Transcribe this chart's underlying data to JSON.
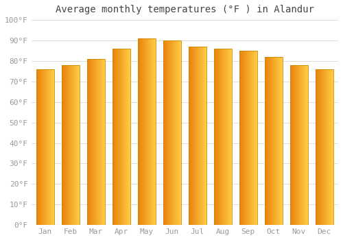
{
  "title": "Average monthly temperatures (°F ) in Alandur",
  "months": [
    "Jan",
    "Feb",
    "Mar",
    "Apr",
    "May",
    "Jun",
    "Jul",
    "Aug",
    "Sep",
    "Oct",
    "Nov",
    "Dec"
  ],
  "values": [
    76,
    78,
    81,
    86,
    91,
    90,
    87,
    86,
    85,
    82,
    78,
    76
  ],
  "bar_color_left": "#E8820A",
  "bar_color_right": "#FFCC44",
  "background_color": "#ffffff",
  "ylim": [
    0,
    100
  ],
  "yticks": [
    0,
    10,
    20,
    30,
    40,
    50,
    60,
    70,
    80,
    90,
    100
  ],
  "ytick_labels": [
    "0°F",
    "10°F",
    "20°F",
    "30°F",
    "40°F",
    "50°F",
    "60°F",
    "70°F",
    "80°F",
    "90°F",
    "100°F"
  ],
  "grid_color": "#dddddd",
  "bar_edge_color": "#cc8800",
  "font_color": "#999999",
  "title_color": "#444444",
  "bar_width": 0.7,
  "n_gradient_steps": 80,
  "title_fontsize": 10,
  "tick_fontsize": 8
}
